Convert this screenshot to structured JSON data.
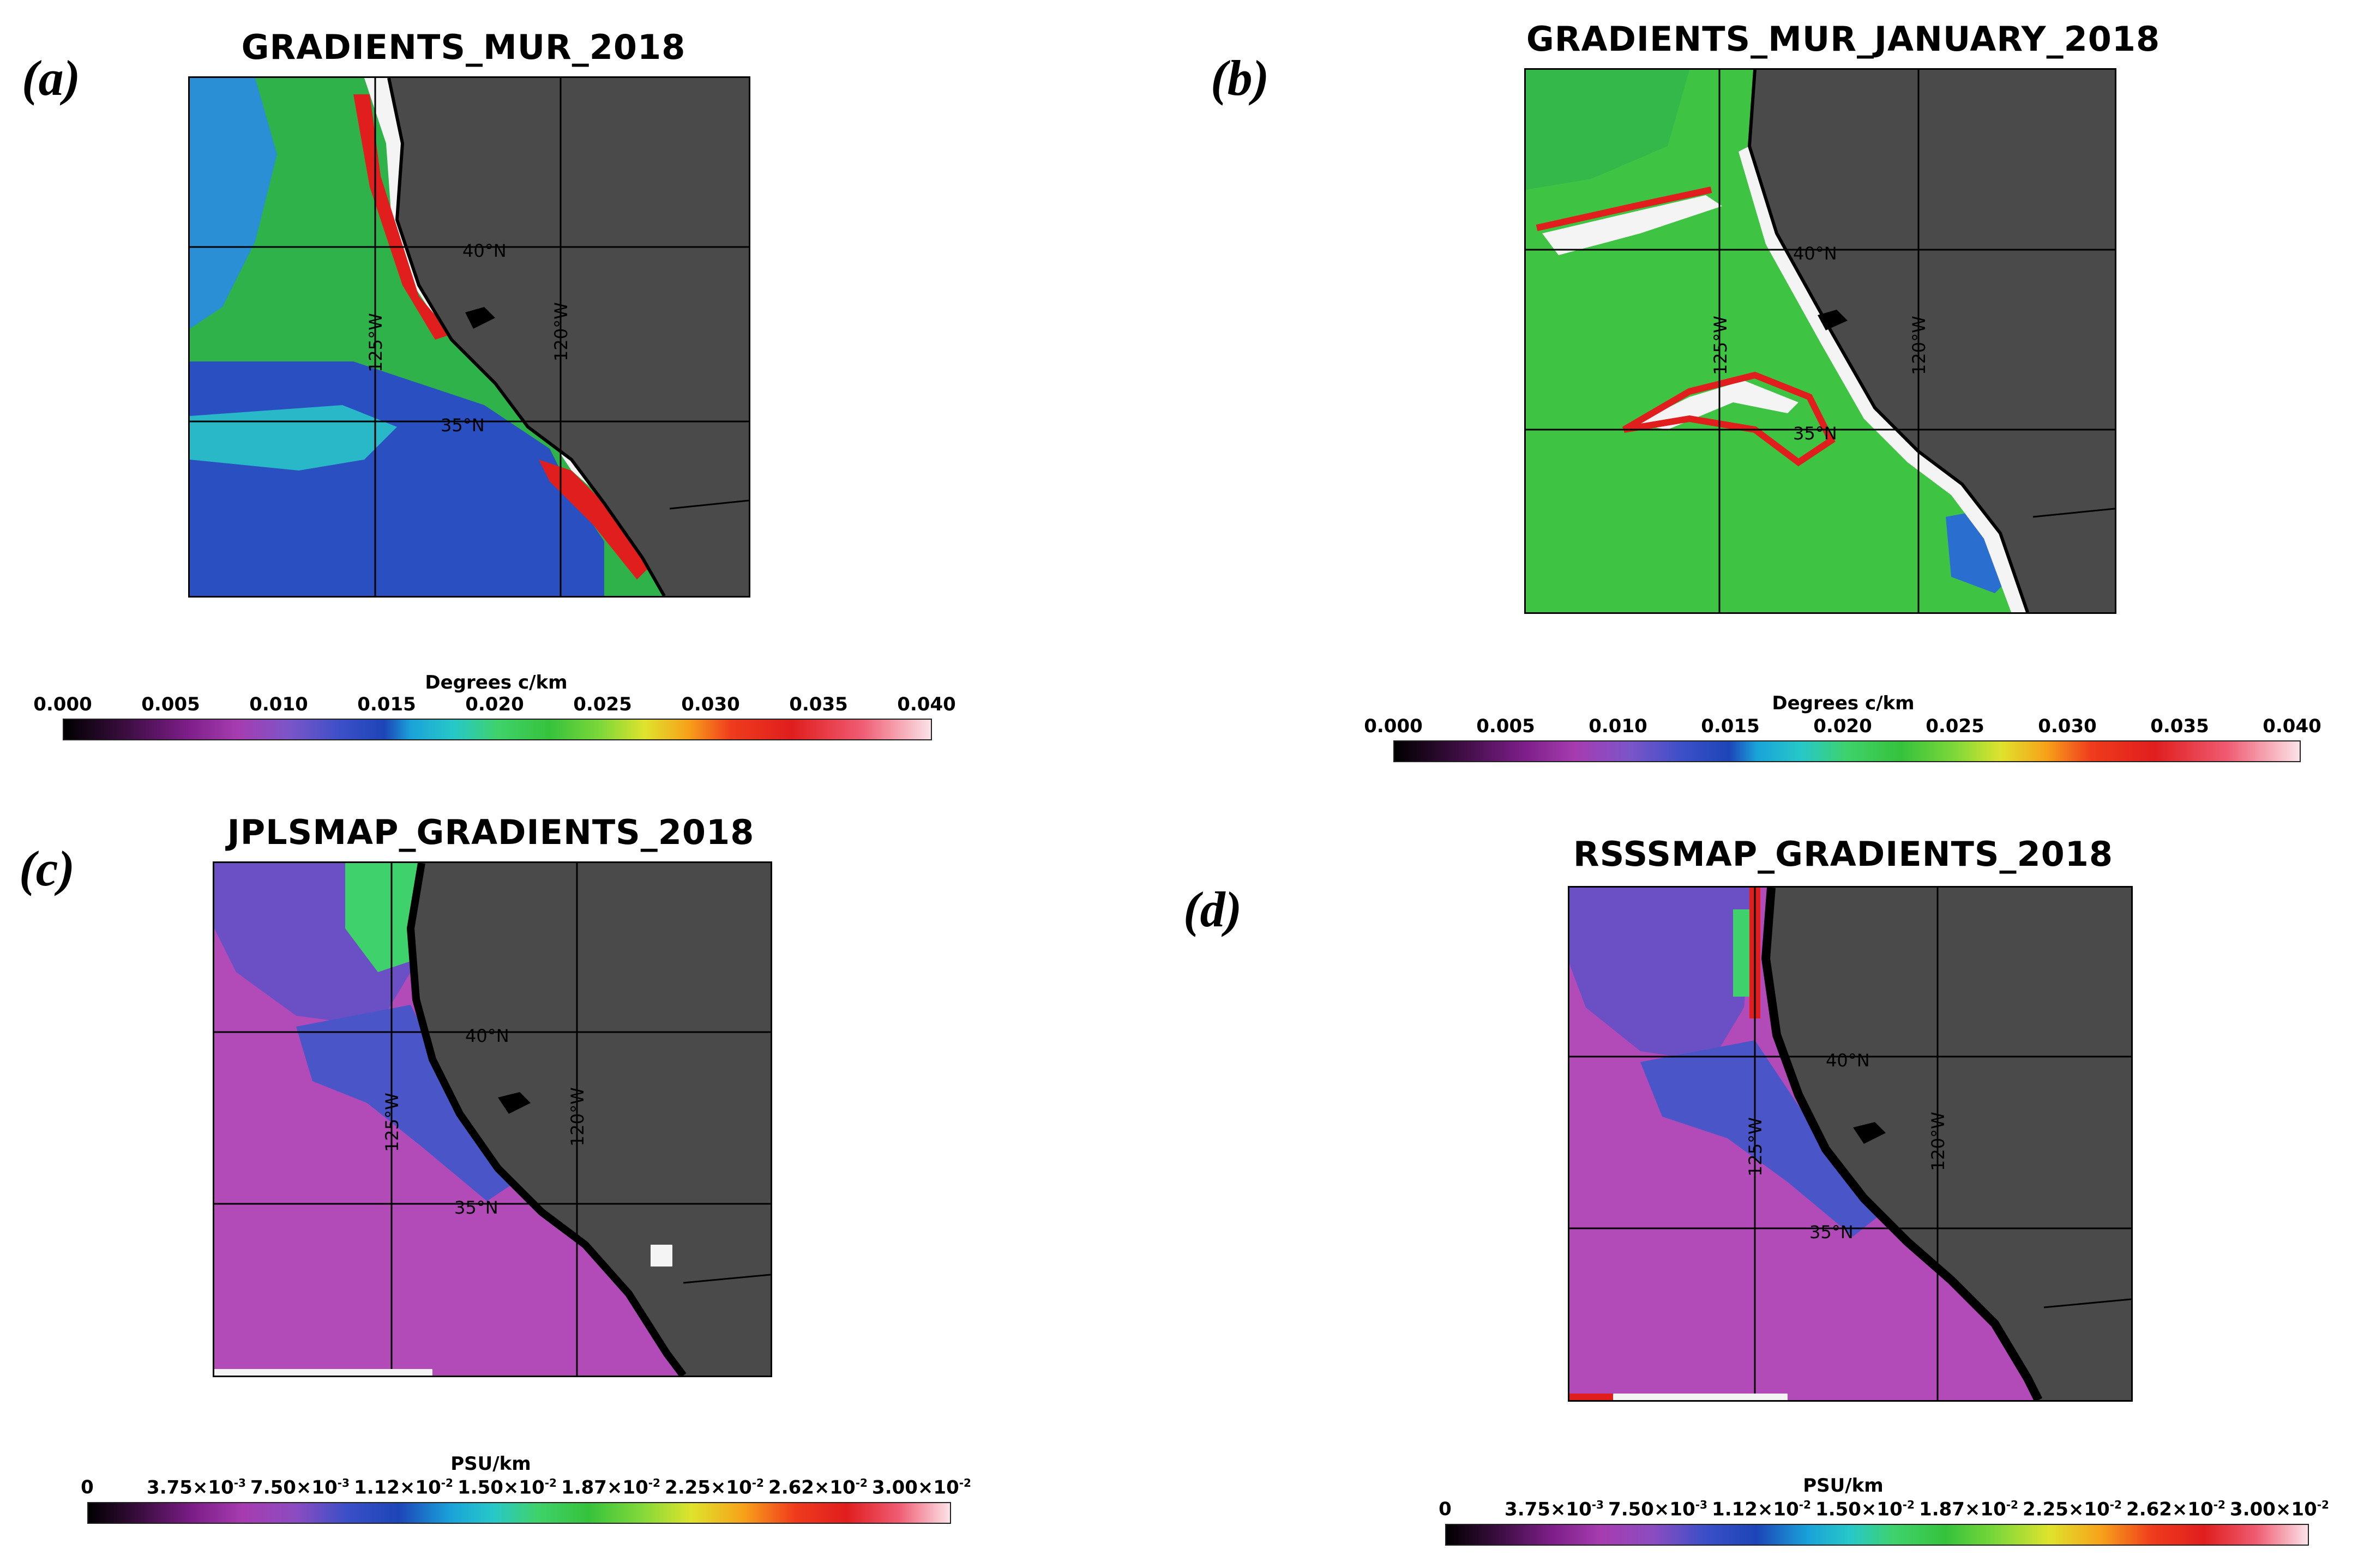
{
  "panels": [
    {
      "tag": "(a)",
      "title": "GRADIENTS_MUR_2018",
      "lat_labels": [
        "40°N",
        "35°N"
      ],
      "lon_labels": [
        "125°W",
        "120°W"
      ],
      "colorbar": {
        "title": "Degrees c/km",
        "ticks": [
          "0.000",
          "0.005",
          "0.010",
          "0.015",
          "0.020",
          "0.025",
          "0.030",
          "0.035",
          "0.040"
        ]
      }
    },
    {
      "tag": "(b)",
      "title": "GRADIENTS_MUR_JANUARY_2018",
      "lat_labels": [
        "40°N",
        "35°N"
      ],
      "lon_labels": [
        "125°W",
        "120°W"
      ],
      "colorbar": {
        "title": "Degrees c/km",
        "ticks": [
          "0.000",
          "0.005",
          "0.010",
          "0.015",
          "0.020",
          "0.025",
          "0.030",
          "0.035",
          "0.040"
        ]
      }
    },
    {
      "tag": "(c)",
      "title": "JPLSMAP_GRADIENTS_2018",
      "lat_labels": [
        "40°N",
        "35°N"
      ],
      "lon_labels": [
        "125°W",
        "120°W"
      ],
      "colorbar": {
        "title": "PSU/km",
        "ticks": [
          {
            "base": "0",
            "exp": ""
          },
          {
            "base": "3.75×10",
            "exp": "-3"
          },
          {
            "base": "7.50×10",
            "exp": "-3"
          },
          {
            "base": "1.12×10",
            "exp": "-2"
          },
          {
            "base": "1.50×10",
            "exp": "-2"
          },
          {
            "base": "1.87×10",
            "exp": "-2"
          },
          {
            "base": "2.25×10",
            "exp": "-2"
          },
          {
            "base": "2.62×10",
            "exp": "-2"
          },
          {
            "base": "3.00×10",
            "exp": "-2"
          }
        ]
      }
    },
    {
      "tag": "(d)",
      "title": "RSSSMAP_GRADIENTS_2018",
      "lat_labels": [
        "40°N",
        "35°N"
      ],
      "lon_labels": [
        "125°W",
        "120°W"
      ],
      "colorbar": {
        "title": "PSU/km",
        "ticks": [
          {
            "base": "0",
            "exp": ""
          },
          {
            "base": "3.75×10",
            "exp": "-3"
          },
          {
            "base": "7.50×10",
            "exp": "-3"
          },
          {
            "base": "1.12×10",
            "exp": "-2"
          },
          {
            "base": "1.50×10",
            "exp": "-2"
          },
          {
            "base": "1.87×10",
            "exp": "-2"
          },
          {
            "base": "2.25×10",
            "exp": "-2"
          },
          {
            "base": "2.62×10",
            "exp": "-2"
          },
          {
            "base": "3.00×10",
            "exp": "-2"
          }
        ]
      }
    }
  ],
  "colors": {
    "land": "#4a4a4a",
    "coast": "#000000"
  }
}
